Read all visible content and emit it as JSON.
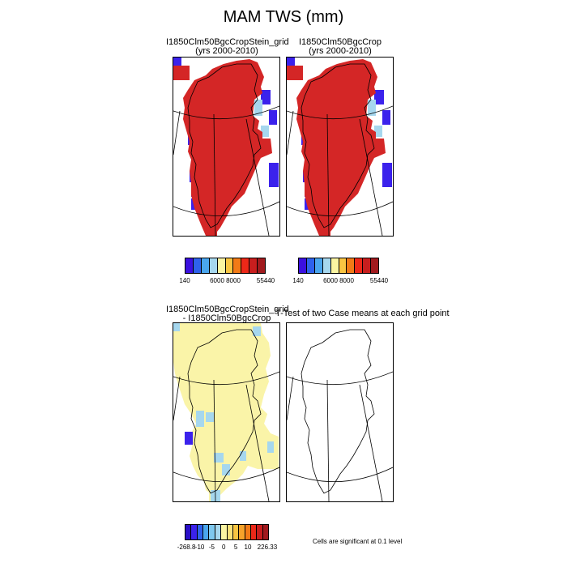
{
  "title": "MAM TWS (mm)",
  "panels": [
    {
      "title_line1": "I1850Clm50BgcCropStein_grid",
      "title_line2": "(yrs 2000-2010)"
    },
    {
      "title_line1": "I1850Clm50BgcCrop",
      "title_line2": "(yrs 2000-2010)"
    },
    {
      "title_line1": "I1850Clm50BgcCropStein_grid",
      "title_line2": "- I1850Clm50BgcCrop"
    },
    {
      "title_line1": "T-Test of two Case means at each grid point",
      "title_line2": ""
    }
  ],
  "colorbar_top": {
    "colors": [
      "#3b10e0",
      "#2e62ec",
      "#4aa6ee",
      "#a6d7ee",
      "#fbf5a2",
      "#f9c542",
      "#f27a16",
      "#ed2818",
      "#c81e1e",
      "#a11a1e"
    ],
    "tick_labels": [
      "140",
      "6000",
      "8000",
      "55440"
    ]
  },
  "colorbar_bottom": {
    "colors": [
      "#2a0fc8",
      "#3b22ec",
      "#2e62ec",
      "#4aa6ee",
      "#7fc8ee",
      "#a6d7ee",
      "#fbf5a2",
      "#f9e27a",
      "#f9c542",
      "#f6a22a",
      "#f27a16",
      "#ed2818",
      "#c81e1e",
      "#a11a1e"
    ],
    "tick_labels": [
      "-268.8",
      "-10",
      "-5",
      "0",
      "5",
      "10",
      "226.33"
    ]
  },
  "significance_note": "Cells are significant at 0.1 level",
  "map_fill_colors": {
    "land_high": "#d42626",
    "coast_blue": "#3b22ec",
    "coast_light": "#a6d7ee",
    "coast_yellow": "#fbf5a2",
    "diff_fill": "#faf4a8"
  }
}
